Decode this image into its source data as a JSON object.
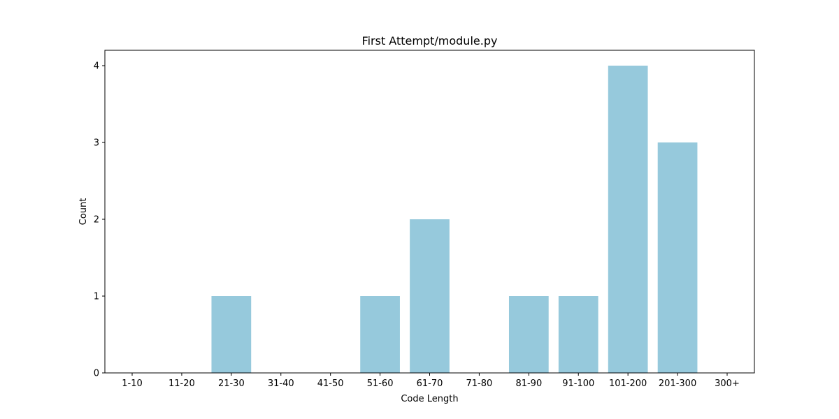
{
  "chart_data": {
    "type": "bar",
    "title": "First Attempt/module.py",
    "xlabel": "Code Length",
    "ylabel": "Count",
    "categories": [
      "1-10",
      "11-20",
      "21-30",
      "31-40",
      "41-50",
      "51-60",
      "61-70",
      "71-80",
      "81-90",
      "91-100",
      "101-200",
      "201-300",
      "300+"
    ],
    "values": [
      0,
      0,
      1,
      0,
      0,
      1,
      2,
      0,
      1,
      1,
      4,
      3,
      0
    ],
    "ylim": [
      0,
      4.2
    ],
    "yticks": [
      "0",
      "1",
      "2",
      "3",
      "4"
    ],
    "grid": false,
    "bar_color": "#96c9dc"
  }
}
